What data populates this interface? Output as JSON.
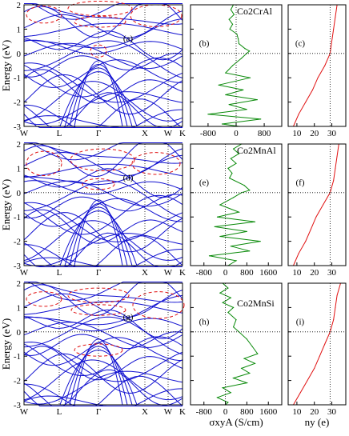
{
  "chart_data": {
    "type": "line",
    "y_axis_label": "Energy (eV)",
    "x_axis_label_middle": "σxyA (S/cm)",
    "x_axis_label_right": "ny (e)",
    "energy_ylim": [
      -3,
      2
    ],
    "energy_ticks": [
      "-3",
      "-2",
      "-1",
      "0",
      "1",
      "2"
    ],
    "kpath_labels": [
      "W",
      "L",
      "Γ",
      "X",
      "W",
      "K"
    ],
    "rows": [
      {
        "compound": "Co2CrAl",
        "panel_labels": [
          "(a)",
          "(b)",
          "(c)"
        ],
        "sigma_ticks": [
          "-800",
          "0",
          "800"
        ],
        "sigma_xlim": [
          -1300,
          1300
        ],
        "ny_ticks": [
          "10",
          "20",
          "30"
        ],
        "ny_xlim": [
          5,
          38
        ],
        "sigma_curve": [
          {
            "E": 2.0,
            "s": -80
          },
          {
            "E": 1.8,
            "s": -150
          },
          {
            "E": 1.6,
            "s": -60
          },
          {
            "E": 1.4,
            "s": -200
          },
          {
            "E": 1.2,
            "s": -100
          },
          {
            "E": 1.0,
            "s": -180
          },
          {
            "E": 0.8,
            "s": 20
          },
          {
            "E": 0.6,
            "s": 60
          },
          {
            "E": 0.4,
            "s": 80
          },
          {
            "E": 0.2,
            "s": 250
          },
          {
            "E": 0.1,
            "s": 380
          },
          {
            "E": 0.0,
            "s": 300
          },
          {
            "E": -0.2,
            "s": 150
          },
          {
            "E": -0.5,
            "s": -100
          },
          {
            "E": -0.8,
            "s": -300
          },
          {
            "E": -1.0,
            "s": 400
          },
          {
            "E": -1.3,
            "s": -500
          },
          {
            "E": -1.5,
            "s": 200
          },
          {
            "E": -1.7,
            "s": -300
          },
          {
            "E": -1.9,
            "s": 600
          },
          {
            "E": -2.1,
            "s": -200
          },
          {
            "E": -2.3,
            "s": 300
          },
          {
            "E": -2.5,
            "s": -800
          },
          {
            "E": -2.7,
            "s": 700
          },
          {
            "E": -2.9,
            "s": -400
          },
          {
            "E": -3.0,
            "s": 100
          }
        ],
        "ny_curve": [
          {
            "E": 2.0,
            "n": 33
          },
          {
            "E": 1.5,
            "n": 32
          },
          {
            "E": 1.0,
            "n": 31
          },
          {
            "E": 0.5,
            "n": 30
          },
          {
            "E": 0.0,
            "n": 29
          },
          {
            "E": -0.5,
            "n": 26
          },
          {
            "E": -1.0,
            "n": 22
          },
          {
            "E": -1.5,
            "n": 19
          },
          {
            "E": -2.0,
            "n": 15
          },
          {
            "E": -2.5,
            "n": 11
          },
          {
            "E": -3.0,
            "n": 8
          }
        ]
      },
      {
        "compound": "Co2MnAl",
        "panel_labels": [
          "(d)",
          "(e)",
          "(f)"
        ],
        "sigma_ticks": [
          "-800",
          "0",
          "800",
          "1600"
        ],
        "sigma_xlim": [
          -1300,
          2100
        ],
        "ny_ticks": [
          "10",
          "20",
          "30"
        ],
        "ny_xlim": [
          5,
          38
        ],
        "sigma_curve": [
          {
            "E": 2.0,
            "s": 600
          },
          {
            "E": 1.8,
            "s": 300
          },
          {
            "E": 1.6,
            "s": 500
          },
          {
            "E": 1.4,
            "s": 200
          },
          {
            "E": 1.2,
            "s": 400
          },
          {
            "E": 1.0,
            "s": 100
          },
          {
            "E": 0.8,
            "s": 250
          },
          {
            "E": 0.6,
            "s": 150
          },
          {
            "E": 0.3,
            "s": 700
          },
          {
            "E": 0.1,
            "s": 900
          },
          {
            "E": 0.0,
            "s": 600
          },
          {
            "E": -0.2,
            "s": 300
          },
          {
            "E": -0.5,
            "s": -200
          },
          {
            "E": -0.8,
            "s": 500
          },
          {
            "E": -1.0,
            "s": -300
          },
          {
            "E": -1.2,
            "s": 1100
          },
          {
            "E": -1.4,
            "s": -400
          },
          {
            "E": -1.6,
            "s": 800
          },
          {
            "E": -1.8,
            "s": -200
          },
          {
            "E": -2.0,
            "s": 1300
          },
          {
            "E": -2.2,
            "s": 200
          },
          {
            "E": -2.4,
            "s": 900
          },
          {
            "E": -2.6,
            "s": -600
          },
          {
            "E": -2.8,
            "s": 400
          },
          {
            "E": -3.0,
            "s": 100
          }
        ],
        "ny_curve": [
          {
            "E": 2.0,
            "n": 34
          },
          {
            "E": 1.5,
            "n": 33
          },
          {
            "E": 1.0,
            "n": 32
          },
          {
            "E": 0.5,
            "n": 31
          },
          {
            "E": 0.0,
            "n": 29
          },
          {
            "E": -0.5,
            "n": 25
          },
          {
            "E": -1.0,
            "n": 21
          },
          {
            "E": -1.5,
            "n": 18
          },
          {
            "E": -2.0,
            "n": 15
          },
          {
            "E": -2.5,
            "n": 11
          },
          {
            "E": -3.0,
            "n": 8
          }
        ]
      },
      {
        "compound": "Co2MnSi",
        "panel_labels": [
          "(g)",
          "(h)",
          "(i)"
        ],
        "sigma_ticks": [
          "-800",
          "0",
          "800",
          "1600"
        ],
        "sigma_xlim": [
          -1300,
          2100
        ],
        "ny_ticks": [
          "10",
          "20",
          "30"
        ],
        "ny_xlim": [
          5,
          38
        ],
        "sigma_curve": [
          {
            "E": 2.0,
            "s": -100
          },
          {
            "E": 1.8,
            "s": 100
          },
          {
            "E": 1.6,
            "s": -200
          },
          {
            "E": 1.4,
            "s": 200
          },
          {
            "E": 1.2,
            "s": -100
          },
          {
            "E": 1.0,
            "s": 300
          },
          {
            "E": 0.8,
            "s": 100
          },
          {
            "E": 0.5,
            "s": 400
          },
          {
            "E": 0.2,
            "s": 300
          },
          {
            "E": 0.0,
            "s": 500
          },
          {
            "E": -0.3,
            "s": 800
          },
          {
            "E": -0.6,
            "s": 1000
          },
          {
            "E": -0.9,
            "s": 1200
          },
          {
            "E": -1.1,
            "s": 700
          },
          {
            "E": -1.3,
            "s": 1100
          },
          {
            "E": -1.5,
            "s": 600
          },
          {
            "E": -1.7,
            "s": 900
          },
          {
            "E": -1.9,
            "s": 300
          },
          {
            "E": -2.1,
            "s": 800
          },
          {
            "E": -2.3,
            "s": -100
          },
          {
            "E": -2.5,
            "s": 200
          },
          {
            "E": -2.7,
            "s": -300
          },
          {
            "E": -2.9,
            "s": 100
          },
          {
            "E": -3.0,
            "s": 0
          }
        ],
        "ny_curve": [
          {
            "E": 2.0,
            "n": 35
          },
          {
            "E": 1.5,
            "n": 33
          },
          {
            "E": 1.0,
            "n": 32
          },
          {
            "E": 0.5,
            "n": 31
          },
          {
            "E": 0.0,
            "n": 29
          },
          {
            "E": -0.5,
            "n": 26
          },
          {
            "E": -1.0,
            "n": 23
          },
          {
            "E": -1.5,
            "n": 20
          },
          {
            "E": -2.0,
            "n": 16
          },
          {
            "E": -2.5,
            "n": 12
          },
          {
            "E": -3.0,
            "n": 8
          }
        ]
      }
    ],
    "colors": {
      "bands": "#1010d0",
      "sigma": "#0a8a0a",
      "ny": "#e01010",
      "circles": "#e01010"
    }
  }
}
